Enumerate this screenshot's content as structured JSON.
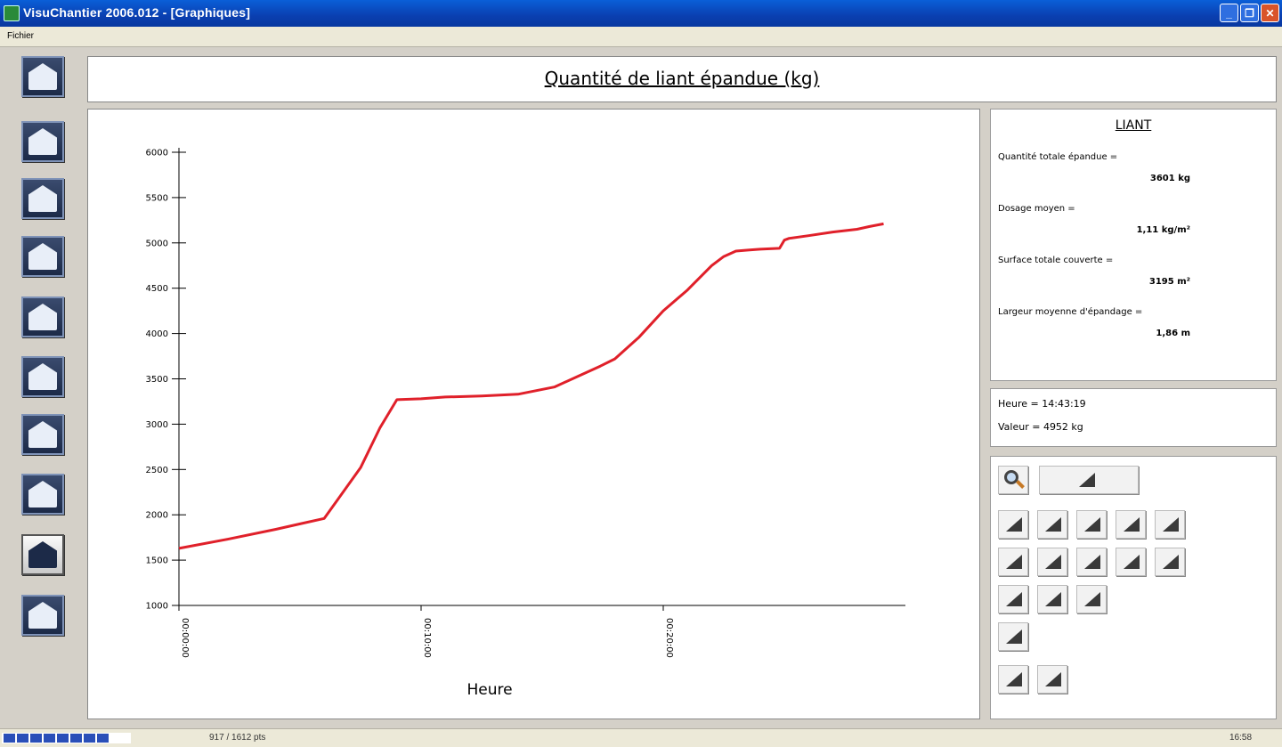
{
  "window": {
    "title": "VisuChantier 2006.012 - [Graphiques]",
    "min_symbol": "_",
    "max_symbol": "❐",
    "close_symbol": "✕"
  },
  "menu": {
    "items": [
      "Fichier"
    ]
  },
  "sidebar": {
    "buttons": [
      {
        "icon": "home-icon"
      },
      {
        "icon": "device-icon"
      },
      {
        "icon": "folder-icon"
      },
      {
        "icon": "monitor-icon"
      },
      {
        "icon": "print-icon"
      },
      {
        "icon": "settings-icon"
      },
      {
        "icon": "truck-icon"
      },
      {
        "icon": "map-icon"
      },
      {
        "icon": "graph-icon",
        "active": true
      },
      {
        "icon": "export-icon"
      }
    ]
  },
  "chart_title": "Quantité de liant épandue (kg)",
  "info": {
    "heading": "LIANT",
    "items": [
      {
        "label": "Quantité totale épandue =",
        "value": "3601 kg"
      },
      {
        "label": "Dosage moyen =",
        "value": "1,11 kg/m²"
      },
      {
        "label": "Surface totale couverte =",
        "value": "3195 m²"
      },
      {
        "label": "Largeur moyenne d'épandage =",
        "value": "1,86 m"
      }
    ]
  },
  "cursor": {
    "heure": "Heure = 14:43:19",
    "valeur": "Valeur = 4952 kg"
  },
  "status": {
    "count": "917 / 1612 pts",
    "time": "16:58",
    "progress_blocks": 8
  },
  "colors": {
    "series": "#e0202a",
    "titlebar": "#0a4fc8"
  },
  "chart_data": {
    "type": "line",
    "xlabel": "Heure",
    "ylabel": "",
    "ylim": [
      1000,
      6000
    ],
    "yticks": [
      1000,
      1500,
      2000,
      2500,
      3000,
      3500,
      4000,
      4500,
      5000,
      5500,
      6000
    ],
    "xlim_minutes": [
      0,
      30
    ],
    "xticks": [
      {
        "t": 0,
        "label": "00:00:00"
      },
      {
        "t": 10,
        "label": "00:10:00"
      },
      {
        "t": 20,
        "label": "00:20:00"
      }
    ],
    "grid": false,
    "series": [
      {
        "x_minutes": [
          0,
          2,
          4,
          5,
          6,
          7.5,
          8.3,
          9,
          10,
          11,
          12.5,
          14,
          15.5,
          16.5,
          17.4,
          18,
          19,
          20,
          21,
          22,
          22.5,
          23,
          23.5,
          24,
          24.8,
          25,
          25.2,
          26,
          27,
          28,
          28.5,
          29.1
        ],
        "y": [
          1630,
          1730,
          1840,
          1900,
          1960,
          2520,
          2960,
          3270,
          3280,
          3300,
          3310,
          3330,
          3410,
          3530,
          3640,
          3720,
          3960,
          4250,
          4480,
          4750,
          4850,
          4910,
          4920,
          4930,
          4940,
          5030,
          5050,
          5080,
          5120,
          5150,
          5180,
          5210
        ]
      }
    ]
  }
}
